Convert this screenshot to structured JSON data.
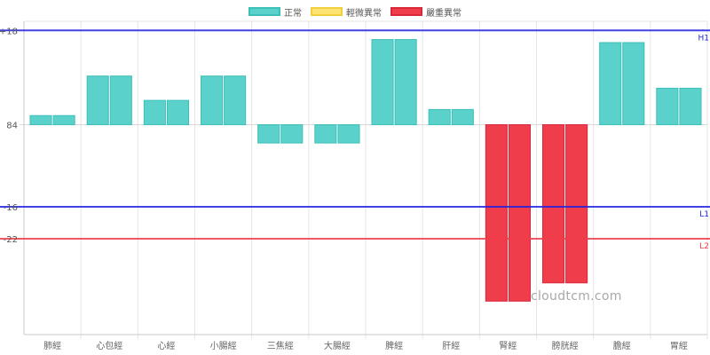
{
  "legend": {
    "items": [
      {
        "label": "正常",
        "fill": "#5bd1cb",
        "border": "#3cbfb8"
      },
      {
        "label": "輕微異常",
        "fill": "#fde371",
        "border": "#f2cf3c"
      },
      {
        "label": "嚴重異常",
        "fill": "#ef3d4c",
        "border": "#d8283a"
      }
    ]
  },
  "watermark": "cloudtcm.com",
  "chart_data": {
    "type": "bar",
    "title": "",
    "xlabel": "",
    "ylabel": "",
    "baseline_label": "84",
    "categories": [
      "肺經",
      "心包經",
      "心經",
      "小腸經",
      "三焦經",
      "大腸經",
      "脾經",
      "肝經",
      "腎經",
      "膀胱經",
      "膽經",
      "胃經"
    ],
    "series": [
      {
        "values": [
          3,
          16,
          8,
          16,
          -6,
          -6,
          28,
          5,
          -58,
          -52,
          27,
          12
        ]
      },
      {
        "values": [
          3,
          16,
          8,
          16,
          -6,
          -6,
          28,
          5,
          -58,
          -52,
          27,
          12
        ]
      }
    ],
    "status": [
      "正常",
      "正常",
      "正常",
      "正常",
      "正常",
      "正常",
      "正常",
      "正常",
      "嚴重異常",
      "嚴重異常",
      "正常",
      "正常"
    ],
    "ylim": [
      -69,
      34
    ],
    "reference_lines": [
      {
        "tick": "+18",
        "tag": "H1",
        "value": 31,
        "color": "#2222e0"
      },
      {
        "tick": "-16",
        "tag": "L1",
        "value": -27,
        "color": "#2222e0"
      },
      {
        "tick": "-22",
        "tag": "L2",
        "value": -37.5,
        "color": "#ef3d4c"
      }
    ],
    "grid": true
  }
}
